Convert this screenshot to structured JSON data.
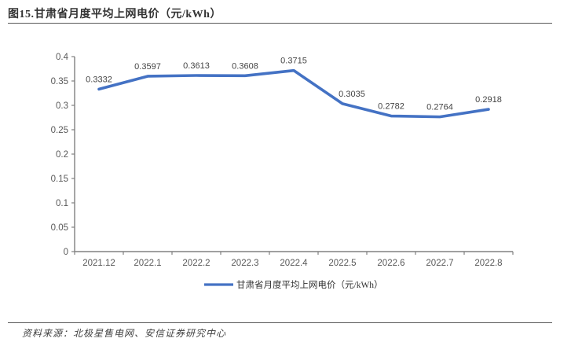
{
  "title": {
    "text": "图15.甘肃省月度平均上网电价（元/kWh）"
  },
  "source": {
    "text": "资料来源：北极星售电网、安信证券研究中心"
  },
  "legend": {
    "label": "甘肃省月度平均上网电价（元/kWh）"
  },
  "colors": {
    "line": "#4472C4",
    "axis": "#808080",
    "tick_label": "#595959",
    "data_label": "#444444",
    "title_text": "#333333",
    "rule": "#595959"
  },
  "chart_data": {
    "type": "line",
    "title": "图15.甘肃省月度平均上网电价（元/kWh）",
    "categories": [
      "2021.12",
      "2022.1",
      "2022.2",
      "2022.3",
      "2022.4",
      "2022.5",
      "2022.6",
      "2022.7",
      "2022.8"
    ],
    "values": [
      0.3332,
      0.3597,
      0.3613,
      0.3608,
      0.3715,
      0.3035,
      0.2782,
      0.2764,
      0.2918
    ],
    "data_labels": [
      "0.3332",
      "0.3597",
      "0.3613",
      "0.3608",
      "0.3715",
      "0.3035",
      "0.2782",
      "0.2764",
      "0.2918"
    ],
    "series": [
      {
        "name": "甘肃省月度平均上网电价（元/kWh）",
        "values": [
          0.3332,
          0.3597,
          0.3613,
          0.3608,
          0.3715,
          0.3035,
          0.2782,
          0.2764,
          0.2918
        ]
      }
    ],
    "xlabel": "",
    "ylabel": "",
    "ylim": [
      0,
      0.4
    ],
    "ytick_step": 0.05,
    "ytick_labels": [
      "0",
      "0.05",
      "0.1",
      "0.15",
      "0.2",
      "0.25",
      "0.3",
      "0.35",
      "0.4"
    ],
    "grid": false,
    "legend_position": "bottom"
  }
}
